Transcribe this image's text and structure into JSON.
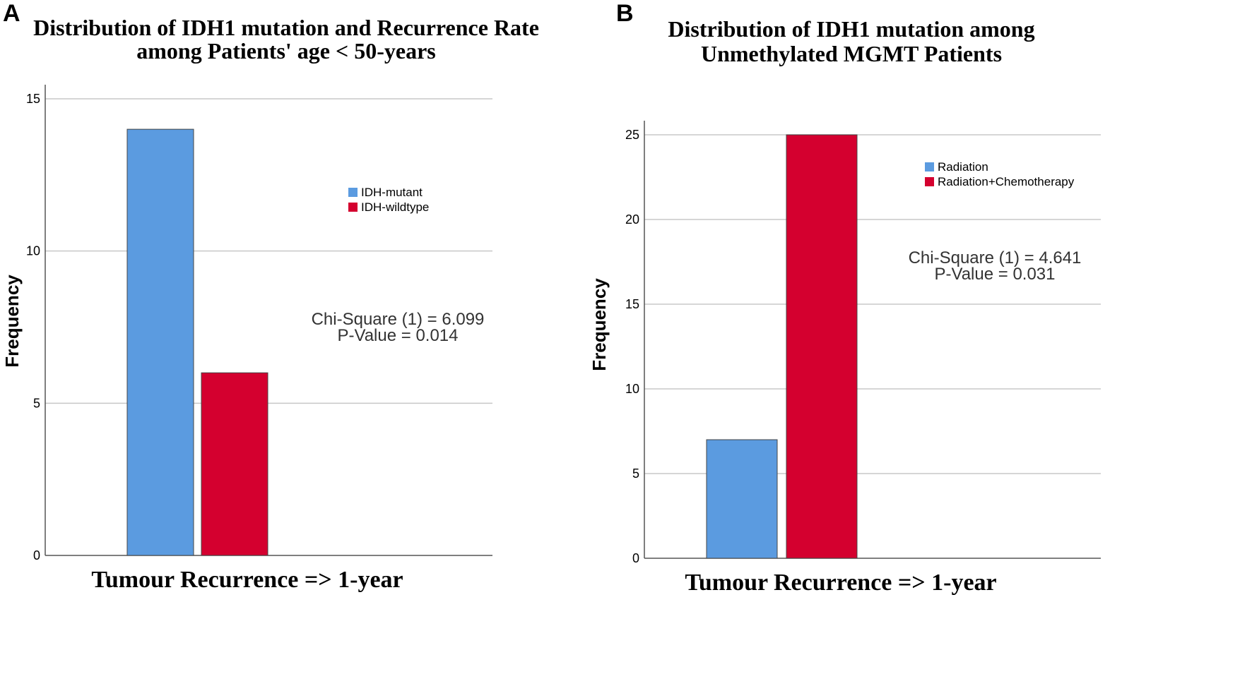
{
  "chart_data": [
    {
      "panel": "A",
      "type": "bar",
      "title": [
        "Distribution of IDH1 mutation and Recurrence Rate",
        "among Patients' age < 50-years"
      ],
      "xlabel": "Tumour Recurrence => 1-year",
      "ylabel": "Frequency",
      "ylim": [
        0,
        15
      ],
      "yticks": [
        0,
        5,
        10,
        15
      ],
      "grid": true,
      "legend_position": "right",
      "series": [
        {
          "name": "IDH-mutant",
          "value": 14,
          "color": "#5b9be0"
        },
        {
          "name": "IDH-wildtype",
          "value": 6,
          "color": "#d4002f"
        }
      ],
      "annotations": [
        "Chi-Square (1) = 6.099",
        "P-Value = 0.014"
      ]
    },
    {
      "panel": "B",
      "type": "bar",
      "title": [
        "Distribution of IDH1 mutation among",
        "Unmethylated MGMT Patients"
      ],
      "xlabel": "Tumour Recurrence => 1-year",
      "ylabel": "Frequency",
      "ylim": [
        0,
        25
      ],
      "yticks": [
        0,
        5,
        10,
        15,
        20,
        25
      ],
      "grid": true,
      "legend_position": "top-right",
      "series": [
        {
          "name": "Radiation",
          "value": 7,
          "color": "#5b9be0"
        },
        {
          "name": "Radiation+Chemotherapy",
          "value": 25,
          "color": "#d4002f"
        }
      ],
      "annotations": [
        "Chi-Square (1) = 4.641",
        "P-Value = 0.031"
      ]
    }
  ]
}
